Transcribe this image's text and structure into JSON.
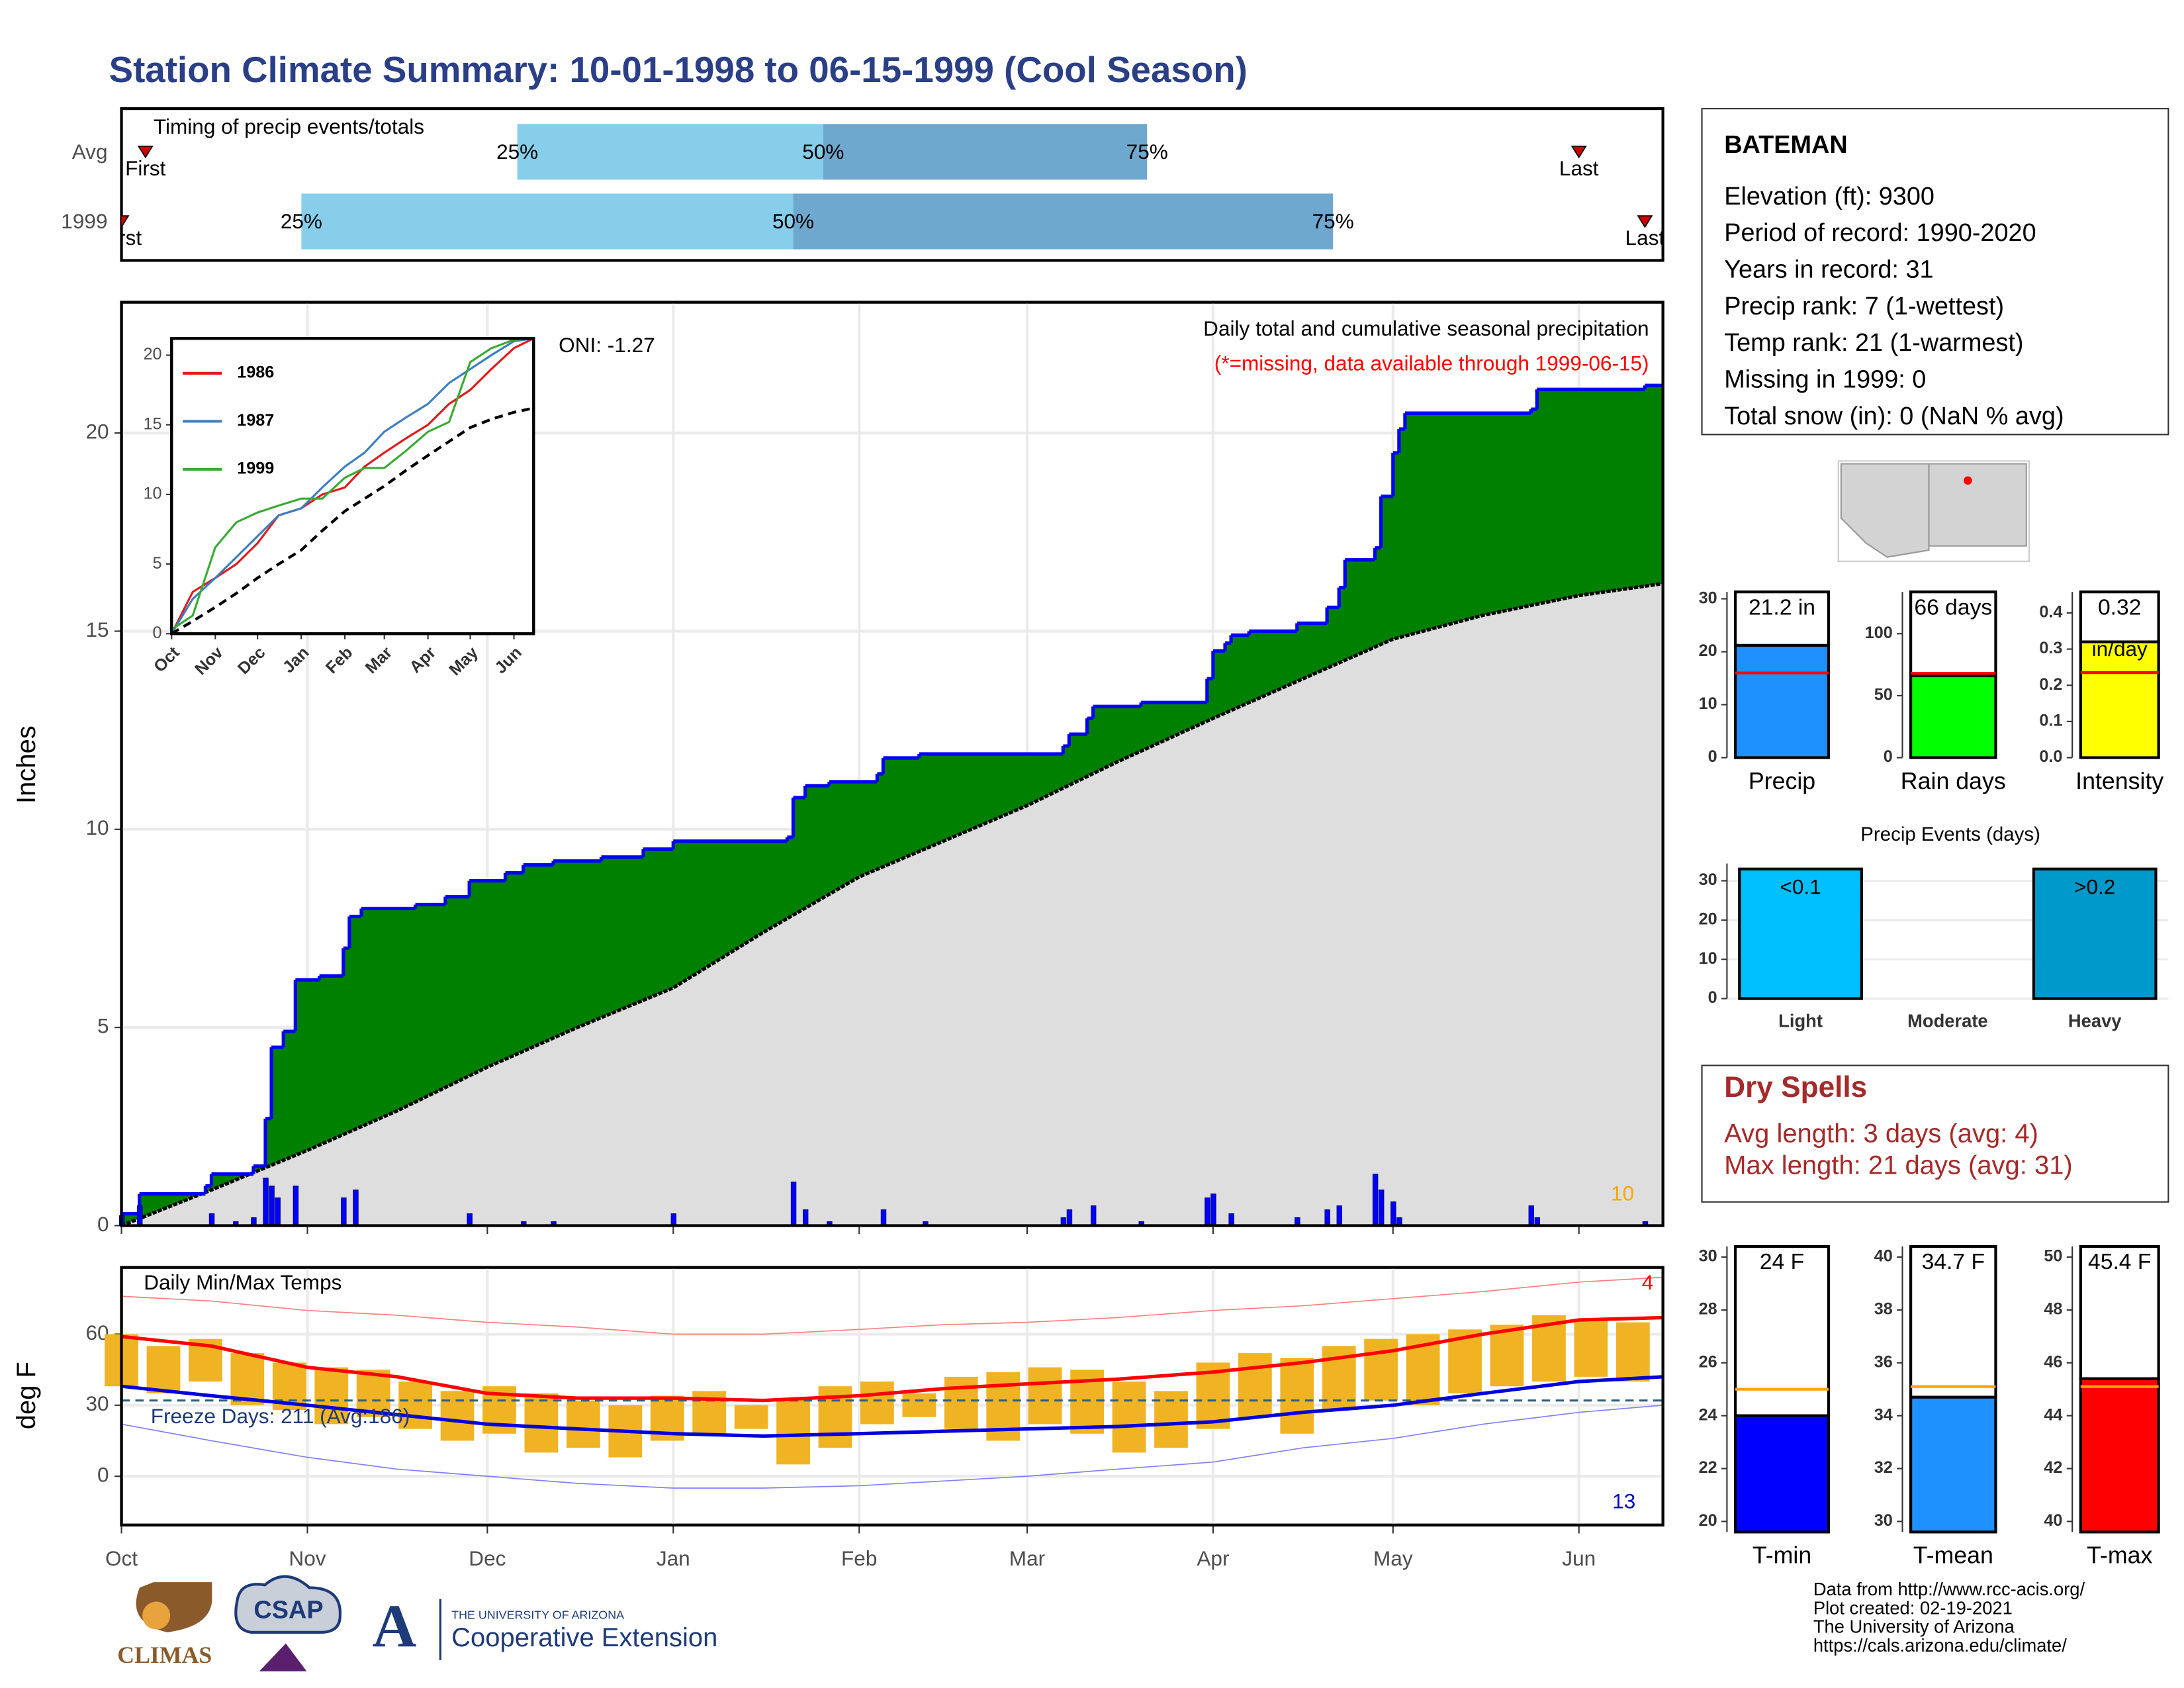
{
  "header": {
    "title": "Station Climate Summary: 10-01-1998 to 06-15-1999 (Cool Season)"
  },
  "station": {
    "name": "BATEMAN",
    "lines": [
      "Elevation (ft): 9300",
      "Period of record: 1990-2020",
      "Years in record: 31",
      "Precip rank: 7 (1-wettest)",
      "Temp rank: 21 (1-warmest)",
      "Missing in 1999: 0",
      "Total snow (in): 0 (NaN % avg)"
    ]
  },
  "dry_spells": {
    "title": "Dry Spells",
    "lines": [
      "Avg length: 3 days (avg: 4)",
      "Max length: 21 days (avg: 31)"
    ]
  },
  "footer": {
    "logos": [
      "CLIMAS",
      "CSAP",
      "THE UNIVERSITY OF ARIZONA",
      "Cooperative Extension"
    ],
    "credits": [
      "Data from http://www.rcc-acis.org/",
      "Plot created: 02-19-2021",
      "The University of Arizona",
      "https://cals.arizona.edu/climate/"
    ]
  },
  "chart_data": [
    {
      "type": "range",
      "title": "Timing of precip events/totals",
      "xlim": [
        0,
        257
      ],
      "rows": [
        {
          "name": "Avg",
          "first": 4,
          "q25": 66,
          "q50": 117,
          "q75": 171,
          "last": 243
        },
        {
          "name": "1999",
          "first": 0,
          "q25": 30,
          "q50": 112,
          "q75": 202,
          "last": 254
        }
      ],
      "quantile_labels": [
        "25%",
        "50%",
        "75%"
      ],
      "first_label": "First",
      "last_label": "Last",
      "colors": [
        "#87ceeb",
        "#6fa8cf"
      ],
      "marker_color": "#cc0000"
    },
    {
      "type": "step_area",
      "title": "Daily total and cumulative seasonal precipitation",
      "subtitle": "(*=missing, data available through 1999-06-15)",
      "annotation": "ONI: -1.27",
      "corner_value": 10,
      "y_label": "Inches",
      "xlim": [
        0,
        257
      ],
      "ylim": [
        0,
        23.3
      ],
      "xticks": [
        0,
        31,
        61,
        92,
        123,
        151,
        182,
        212,
        243
      ],
      "yticks": [
        0,
        5,
        10,
        15,
        20
      ],
      "grid": true,
      "series": [
        {
          "color": "#008000",
          "line_color": "#0000ff",
          "x": [
            0,
            3,
            14,
            15,
            22,
            24,
            25,
            27,
            29,
            33,
            37,
            38,
            40,
            49,
            54,
            58,
            64,
            67,
            72,
            80,
            87,
            92,
            111,
            112,
            114,
            118,
            126,
            127,
            133,
            157,
            158,
            161,
            162,
            170,
            181,
            182,
            184,
            185,
            188,
            196,
            201,
            203,
            204,
            209,
            210,
            212,
            213,
            214,
            235,
            236,
            254
          ],
          "values": [
            0.3,
            0.8,
            1.0,
            1.3,
            1.5,
            2.7,
            4.5,
            4.9,
            6.2,
            6.3,
            7.0,
            7.8,
            8.0,
            8.1,
            8.3,
            8.7,
            8.9,
            9.1,
            9.2,
            9.3,
            9.5,
            9.7,
            9.8,
            10.8,
            11.1,
            11.2,
            11.4,
            11.8,
            11.9,
            12.1,
            12.4,
            12.8,
            13.1,
            13.2,
            13.8,
            14.5,
            14.7,
            14.9,
            15.0,
            15.2,
            15.6,
            16.1,
            16.8,
            17.1,
            18.4,
            19.5,
            20.1,
            20.5,
            20.6,
            21.1,
            21.2
          ]
        },
        {
          "color": "#dedede",
          "line_color": "#000000",
          "x": [
            0,
            15,
            31,
            46,
            61,
            76,
            92,
            107,
            123,
            137,
            151,
            166,
            182,
            197,
            212,
            227,
            243,
            257
          ],
          "values": [
            0,
            0.9,
            1.9,
            2.9,
            4.0,
            5.0,
            6.0,
            7.4,
            8.8,
            9.7,
            10.6,
            11.7,
            12.8,
            13.8,
            14.8,
            15.4,
            15.9,
            16.2
          ]
        }
      ],
      "daily": {
        "color": "#0000ff",
        "x": [
          0,
          3,
          15,
          19,
          22,
          24,
          25,
          26,
          29,
          37,
          39,
          58,
          67,
          72,
          92,
          112,
          114,
          118,
          127,
          134,
          157,
          158,
          162,
          170,
          181,
          182,
          185,
          196,
          201,
          203,
          209,
          210,
          212,
          213,
          235,
          236,
          254
        ],
        "values": [
          0.25,
          0.5,
          0.3,
          0.1,
          0.2,
          1.2,
          1.0,
          0.7,
          1.0,
          0.7,
          0.9,
          0.3,
          0.1,
          0.1,
          0.3,
          1.1,
          0.4,
          0.1,
          0.4,
          0.1,
          0.2,
          0.4,
          0.5,
          0.1,
          0.7,
          0.8,
          0.3,
          0.2,
          0.4,
          0.5,
          1.3,
          0.9,
          0.6,
          0.2,
          0.5,
          0.2,
          0.1
        ]
      }
    },
    {
      "type": "line",
      "xlim": [
        0,
        257
      ],
      "ylim": [
        0,
        21.2
      ],
      "yticks": [
        0,
        5,
        10,
        15,
        20
      ],
      "xticks": [
        {
          "value": 0,
          "label": "Oct"
        },
        {
          "value": 31,
          "label": "Nov"
        },
        {
          "value": 61,
          "label": "Dec"
        },
        {
          "value": 92,
          "label": "Jan"
        },
        {
          "value": 123,
          "label": "Feb"
        },
        {
          "value": 151,
          "label": "Mar"
        },
        {
          "value": 182,
          "label": "Apr"
        },
        {
          "value": 212,
          "label": "May"
        },
        {
          "value": 243,
          "label": "Jun"
        }
      ],
      "x": [
        0,
        15,
        31,
        46,
        61,
        76,
        92,
        107,
        123,
        137,
        151,
        166,
        182,
        197,
        212,
        227,
        243,
        257
      ],
      "series": [
        {
          "name": "1986",
          "color": "#e31a1c",
          "values": [
            0,
            3,
            4,
            5,
            6.5,
            8.5,
            9,
            10,
            10.5,
            12,
            13,
            14,
            15,
            16.5,
            17.5,
            19,
            20.5,
            21.2
          ]
        },
        {
          "name": "1987",
          "color": "#3a7fc1",
          "values": [
            0,
            2.5,
            4,
            5.5,
            7,
            8.5,
            9,
            10.5,
            12,
            13,
            14.5,
            15.5,
            16.5,
            18,
            19,
            20,
            21,
            21.2
          ]
        },
        {
          "name": "1999",
          "color": "#3aaa35",
          "values": [
            0.3,
            1.3,
            6.2,
            8.0,
            8.7,
            9.2,
            9.7,
            9.7,
            11.2,
            11.9,
            11.9,
            13.1,
            14.5,
            15.2,
            19.5,
            20.5,
            21.1,
            21.2
          ]
        },
        {
          "color": "#000000",
          "dashed": true,
          "values": [
            0,
            0.9,
            1.9,
            2.9,
            4.0,
            5.0,
            6.0,
            7.4,
            8.8,
            9.7,
            10.6,
            11.7,
            12.8,
            13.8,
            14.8,
            15.4,
            15.9,
            16.2
          ]
        }
      ]
    },
    {
      "type": "temp",
      "title": "Daily Min/Max Temps",
      "annotation": "Freeze Days: 211 (Avg:186)",
      "y_label": "deg F",
      "high_count": 4,
      "low_count": 13,
      "freeze_line": 32,
      "xlim": [
        0,
        257
      ],
      "ylim": [
        -20.6,
        88.2
      ],
      "yticks": [
        0,
        30,
        60
      ],
      "grid": true,
      "xticks": [
        {
          "value": 0,
          "label": "Oct"
        },
        {
          "value": 31,
          "label": "Nov"
        },
        {
          "value": 61,
          "label": "Dec"
        },
        {
          "value": 92,
          "label": "Jan"
        },
        {
          "value": 123,
          "label": "Feb"
        },
        {
          "value": 151,
          "label": "Mar"
        },
        {
          "value": 182,
          "label": "Apr"
        },
        {
          "value": 212,
          "label": "May"
        },
        {
          "value": 243,
          "label": "Jun"
        }
      ],
      "x": [
        0,
        15,
        31,
        46,
        61,
        76,
        92,
        107,
        123,
        137,
        151,
        166,
        182,
        197,
        212,
        227,
        243,
        257
      ],
      "series": [
        {
          "color": "#ff8080",
          "width": 0.8,
          "values": [
            76,
            74,
            70,
            68,
            65,
            63,
            60,
            60,
            62,
            64,
            65,
            67,
            70,
            72,
            75,
            78,
            82,
            84
          ]
        },
        {
          "color": "#8080ff",
          "width": 0.8,
          "values": [
            22,
            15,
            8,
            3,
            0,
            -3,
            -5,
            -5,
            -4,
            -2,
            0,
            3,
            6,
            12,
            16,
            22,
            27,
            30
          ]
        },
        {
          "color": "#ff0000",
          "width": 2.5,
          "values": [
            59,
            55,
            46,
            42,
            35,
            33,
            33,
            32,
            34,
            37,
            39,
            41,
            44,
            48,
            53,
            60,
            66,
            67
          ]
        },
        {
          "color": "#0000dd",
          "width": 2.5,
          "values": [
            38,
            34,
            30,
            26,
            22,
            20,
            18,
            17,
            18,
            19,
            20,
            21,
            23,
            27,
            30,
            35,
            40,
            42
          ]
        }
      ],
      "daily": {
        "color": "#f0b323",
        "x": [
          0,
          7,
          14,
          21,
          28,
          35,
          42,
          49,
          56,
          63,
          70,
          77,
          84,
          91,
          98,
          105,
          112,
          119,
          126,
          133,
          140,
          147,
          154,
          161,
          168,
          175,
          182,
          189,
          196,
          203,
          210,
          217,
          224,
          231,
          238,
          245,
          252
        ],
        "max": [
          60,
          55,
          58,
          52,
          48,
          46,
          45,
          40,
          36,
          38,
          35,
          32,
          30,
          34,
          36,
          30,
          33,
          38,
          40,
          35,
          42,
          44,
          46,
          45,
          40,
          36,
          48,
          52,
          50,
          55,
          58,
          60,
          62,
          64,
          68,
          66,
          65
        ],
        "min": [
          38,
          35,
          40,
          30,
          28,
          22,
          25,
          20,
          15,
          18,
          10,
          12,
          8,
          15,
          18,
          20,
          5,
          12,
          22,
          25,
          20,
          15,
          22,
          18,
          10,
          12,
          20,
          25,
          18,
          28,
          32,
          30,
          35,
          38,
          40,
          42,
          40
        ]
      }
    },
    {
      "type": "summary_bar",
      "label": "Precip",
      "value": 21.2,
      "value_label": "21.2 in",
      "avg": 16,
      "ylim": [
        0,
        31.3
      ],
      "yticks": [
        0,
        10,
        20,
        30
      ],
      "color": "#1e90ff",
      "avg_color": "#ff0000"
    },
    {
      "type": "summary_bar",
      "label": "Rain days",
      "value": 66,
      "value_label": "66 days",
      "avg": 68,
      "ylim": [
        0,
        133.7
      ],
      "yticks": [
        0,
        50,
        100
      ],
      "color": "#00ff00",
      "avg_color": "#ff0000"
    },
    {
      "type": "summary_bar",
      "label": "Intensity",
      "value": 0.32,
      "value_label": "0.32",
      "unit": "in/day",
      "avg": 0.235,
      "ylim": [
        0,
        0.458
      ],
      "yticks": [
        {
          "value": 0,
          "label": "0.0"
        },
        0.1,
        0.2,
        0.3,
        0.4
      ],
      "color": "#ffff00",
      "avg_color": "#ff0000"
    },
    {
      "type": "bar",
      "title": "Precip Events (days)",
      "categories": [
        "Light",
        "Moderate",
        "Heavy"
      ],
      "values": [
        33,
        0,
        33
      ],
      "bin_labels": [
        "<0.1",
        null,
        ">0.2"
      ],
      "colors": [
        "#00bfff",
        "#00bfff",
        "#0099cc"
      ],
      "ylim": [
        0,
        34.4
      ],
      "yticks": [
        0,
        10,
        20,
        30
      ],
      "grid": true
    },
    {
      "type": "summary_bar",
      "label": "T-min",
      "value": 24.0,
      "value_label": "24 F",
      "avg": 25,
      "ylim": [
        19.6,
        30.4
      ],
      "yticks": [
        20,
        22,
        24,
        26,
        28,
        30
      ],
      "color": "#0000ff",
      "avg_color": "#ffa500"
    },
    {
      "type": "summary_bar",
      "label": "T-mean",
      "value": 34.7,
      "value_label": "34.7 F",
      "avg": 35.1,
      "ylim": [
        29.6,
        40.4
      ],
      "yticks": [
        30,
        32,
        34,
        36,
        38,
        40
      ],
      "color": "#1e90ff",
      "avg_color": "#ffa500"
    },
    {
      "type": "summary_bar",
      "label": "T-max",
      "value": 45.4,
      "value_label": "45.4 F",
      "avg": 45.1,
      "ylim": [
        39.6,
        50.4
      ],
      "yticks": [
        40,
        42,
        44,
        46,
        48,
        50
      ],
      "color": "#ff0000",
      "avg_color": "#ffa500"
    }
  ]
}
